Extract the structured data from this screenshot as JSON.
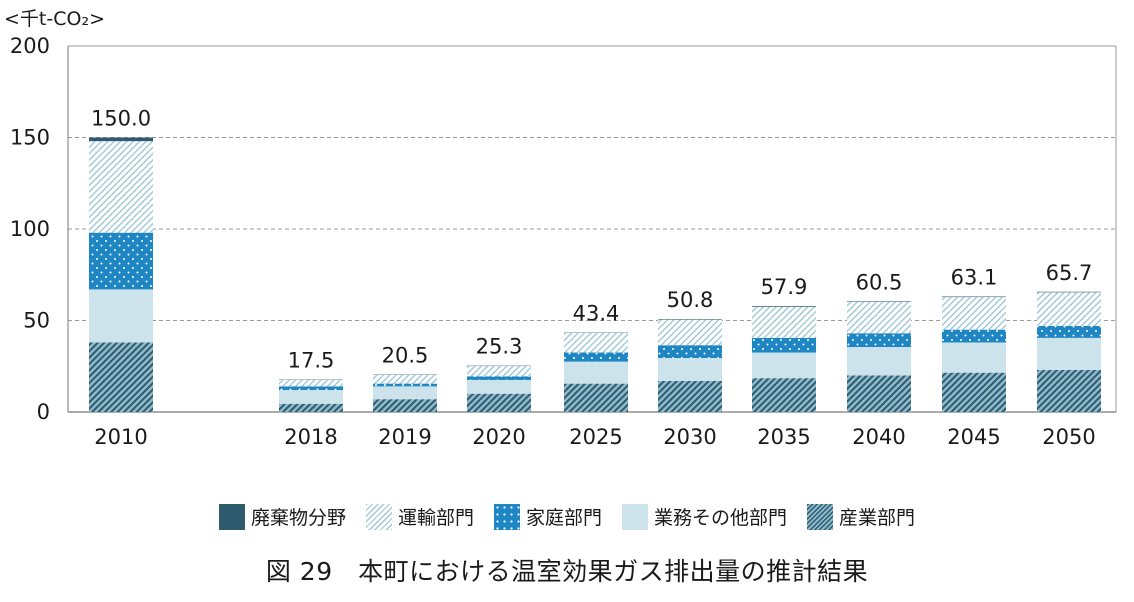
{
  "chart_data": {
    "type": "bar",
    "stacked": true,
    "unit_label": "<千t-CO₂>",
    "ylim": [
      0,
      200
    ],
    "yticks": [
      0,
      50,
      100,
      150,
      200
    ],
    "grid": "horizontal dashed",
    "legend_position": "bottom",
    "categories": [
      "2010",
      "2018",
      "2019",
      "2020",
      "2025",
      "2030",
      "2035",
      "2040",
      "2045",
      "2050"
    ],
    "totals": [
      "150.0",
      "17.5",
      "20.5",
      "25.3",
      "43.4",
      "50.8",
      "57.9",
      "60.5",
      "63.1",
      "65.7"
    ],
    "series": [
      {
        "name": "産業部門",
        "key": "industry",
        "values": [
          38.0,
          4.5,
          7.0,
          10.0,
          15.5,
          17.0,
          18.5,
          20.0,
          21.5,
          23.0
        ]
      },
      {
        "name": "業務その他部門",
        "key": "business",
        "values": [
          29.0,
          7.5,
          7.0,
          7.5,
          12.0,
          12.5,
          14.0,
          15.5,
          16.5,
          17.5
        ]
      },
      {
        "name": "家庭部門",
        "key": "household",
        "values": [
          31.0,
          2.0,
          1.5,
          2.0,
          5.0,
          7.0,
          8.0,
          7.5,
          7.0,
          6.5
        ]
      },
      {
        "name": "運輸部門",
        "key": "transport",
        "values": [
          50.0,
          3.5,
          4.8,
          5.6,
          10.7,
          14.0,
          17.0,
          17.2,
          17.8,
          18.4
        ]
      },
      {
        "name": "廃棄物分野",
        "key": "waste",
        "values": [
          2.0,
          0.2,
          0.2,
          0.2,
          0.2,
          0.3,
          0.4,
          0.3,
          0.3,
          0.3
        ]
      }
    ],
    "legend_order": [
      "廃棄物分野",
      "運輸部門",
      "家庭部門",
      "業務その他部門",
      "産業部門"
    ],
    "colors": {
      "waste": "#2e5b6e",
      "transport": "#9fc7d6",
      "household": "#1f86c4",
      "business": "#cde3ec",
      "industry": "#2e5b6e"
    }
  },
  "caption": "図 29　本町における温室効果ガス排出量の推計結果"
}
